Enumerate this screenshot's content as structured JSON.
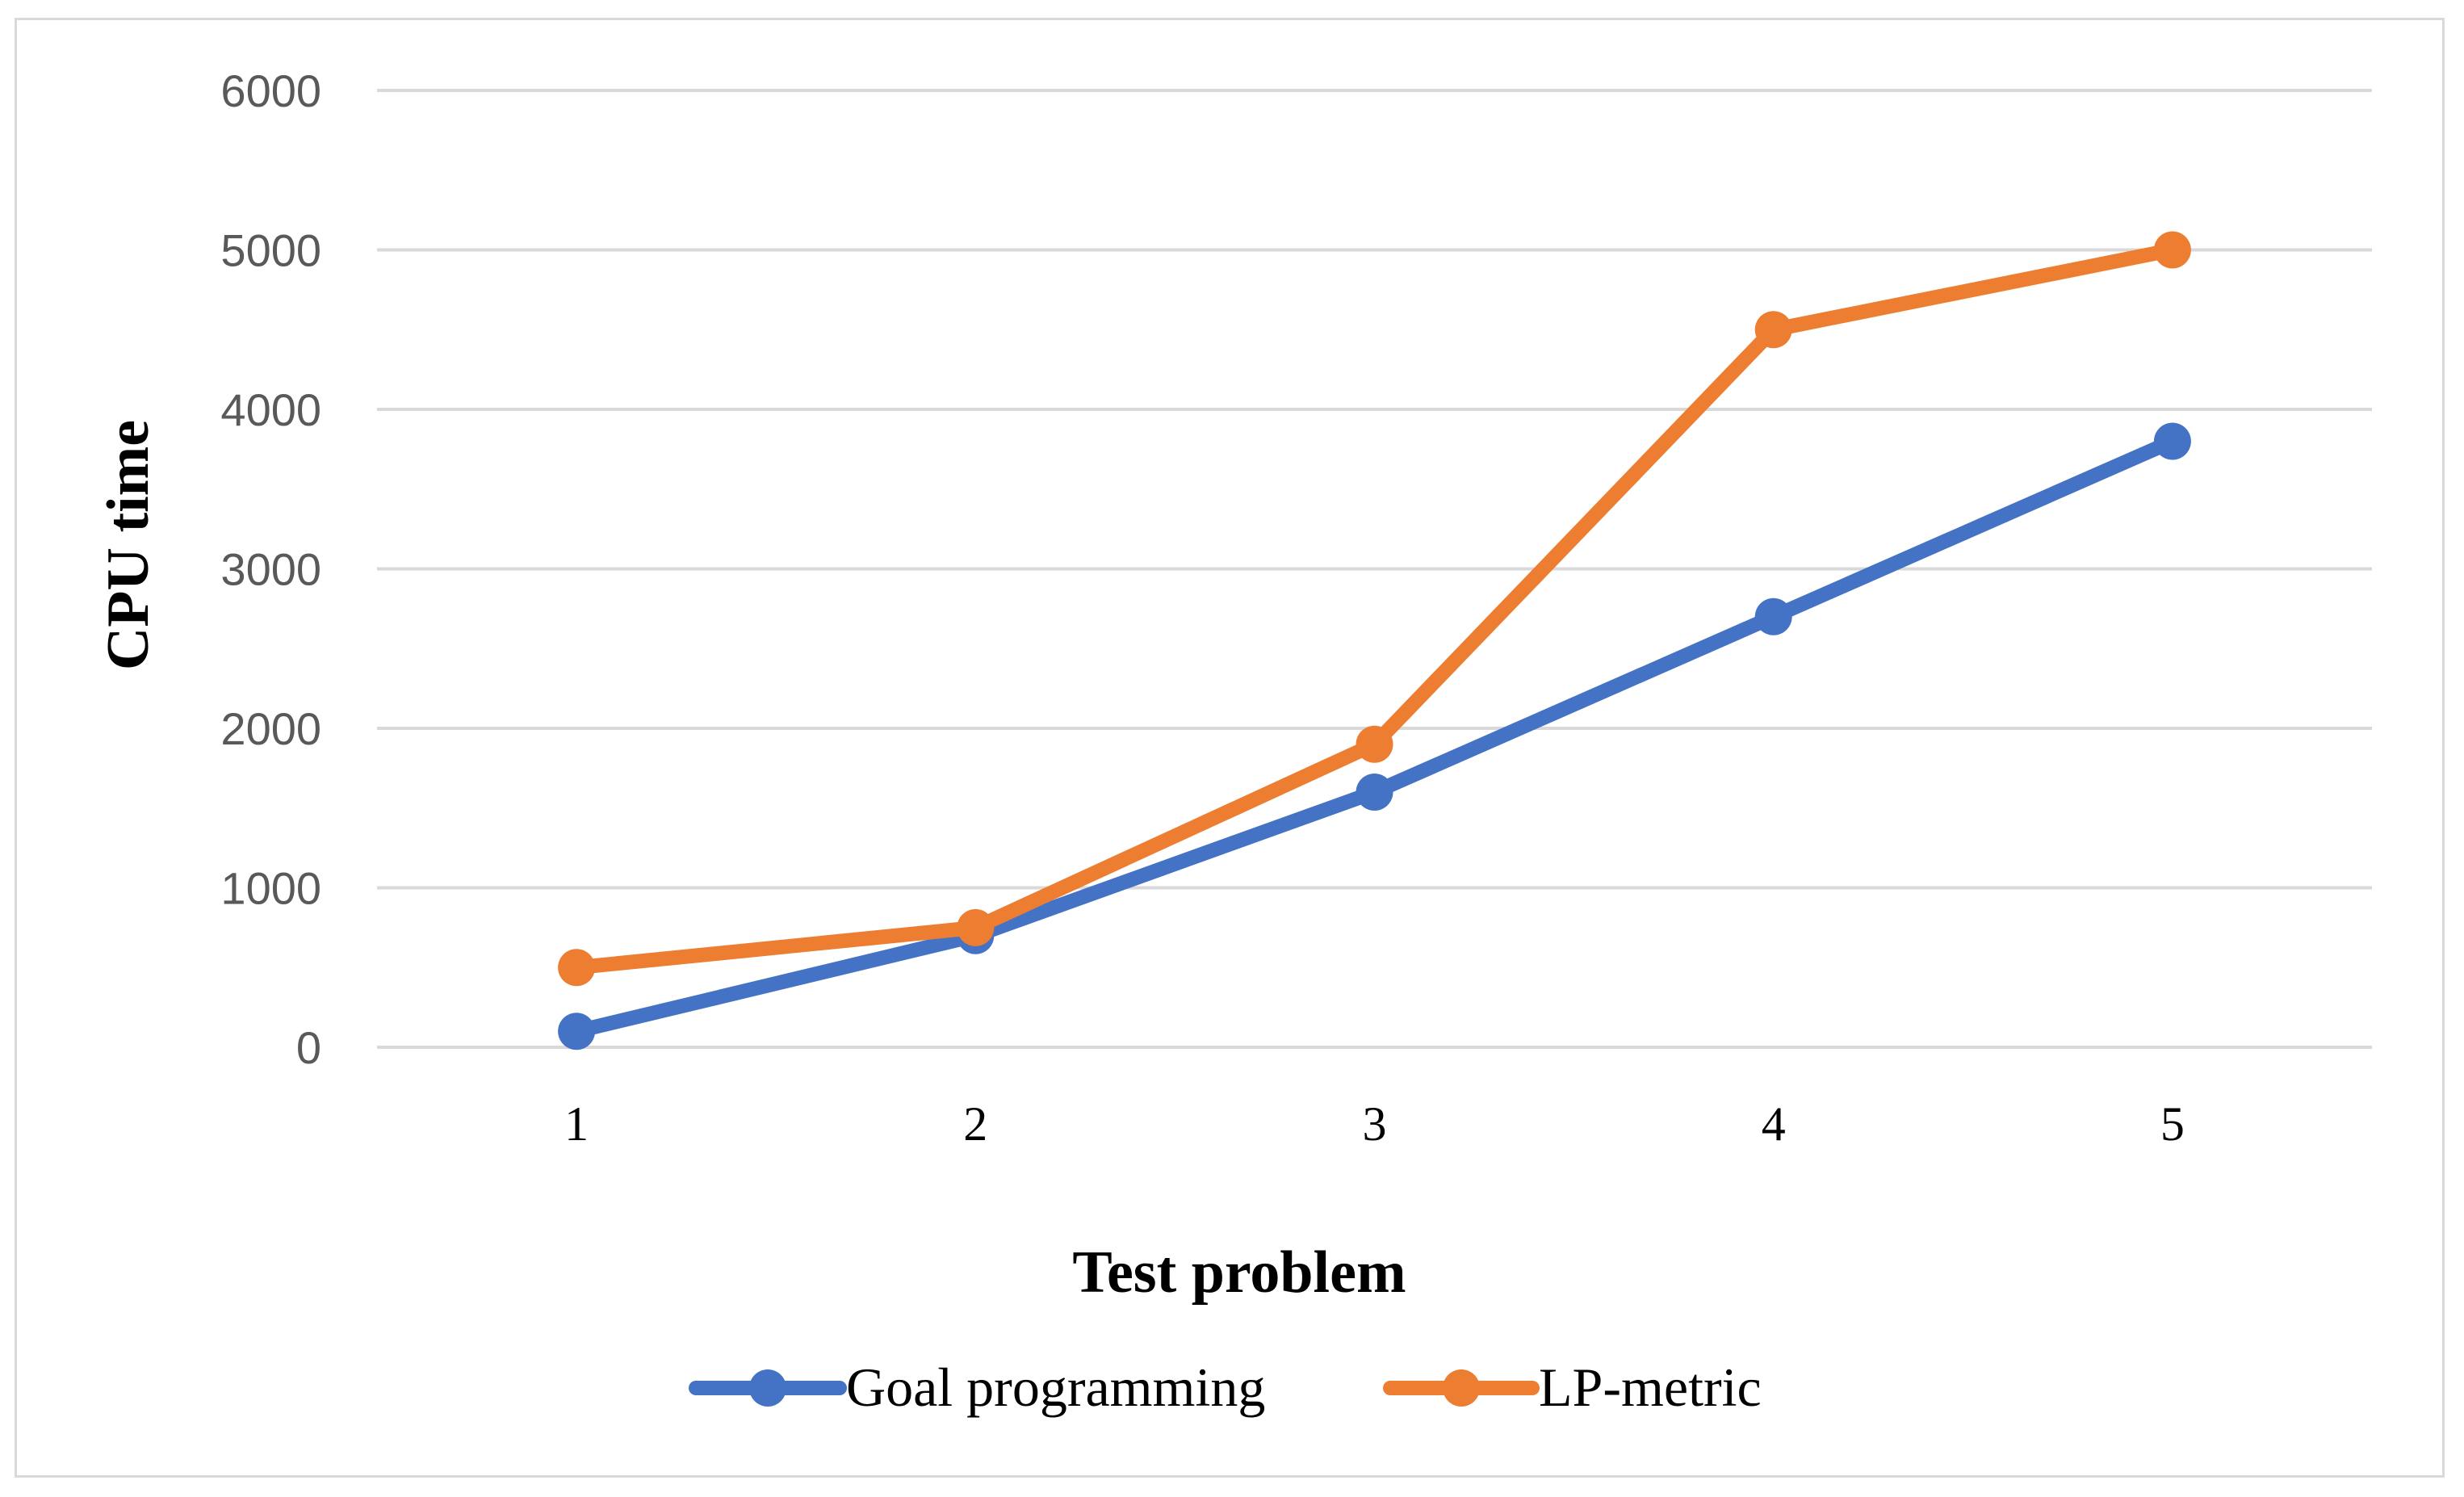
{
  "chart_data": {
    "type": "line",
    "title": "",
    "xlabel": "Test problem",
    "ylabel": "CPU time",
    "categories": [
      "1",
      "2",
      "3",
      "4",
      "5"
    ],
    "ylim": [
      0,
      6000
    ],
    "yticks": [
      0,
      1000,
      2000,
      3000,
      4000,
      5000,
      6000
    ],
    "grid": true,
    "legend_position": "bottom",
    "series": [
      {
        "name": "Goal programming",
        "color": "#4472C4",
        "values": [
          100,
          700,
          1600,
          2700,
          3800
        ]
      },
      {
        "name": "LP-metric",
        "color": "#ED7D31",
        "values": [
          500,
          750,
          1900,
          4500,
          5000
        ]
      }
    ]
  }
}
